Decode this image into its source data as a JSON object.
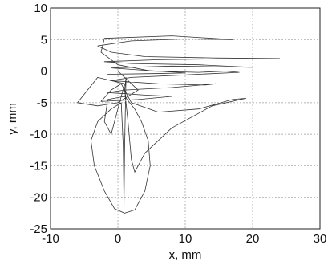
{
  "chart_data": {
    "type": "line",
    "xlabel": "x, mm",
    "ylabel": "y, mm",
    "xlim": [
      -10,
      30
    ],
    "ylim": [
      -25,
      10
    ],
    "xticks": [
      -10,
      0,
      10,
      20,
      30
    ],
    "yticks": [
      -25,
      -20,
      -15,
      -10,
      -5,
      0,
      5,
      10
    ],
    "grid": true,
    "series": [
      {
        "values_note": "approximate 2D trajectory (x, y) in mm",
        "points": [
          [
            -1.5,
            -0.5
          ],
          [
            5.0,
            -0.4
          ],
          [
            10.0,
            -0.3
          ],
          [
            3.0,
            0.2
          ],
          [
            -1.0,
            0.5
          ],
          [
            8.0,
            0.8
          ],
          [
            15.0,
            0.7
          ],
          [
            20.0,
            0.6
          ],
          [
            12.0,
            1.0
          ],
          [
            2.0,
            1.2
          ],
          [
            -2.0,
            1.5
          ],
          [
            6.0,
            1.8
          ],
          [
            18.0,
            2.0
          ],
          [
            24.0,
            2.0
          ],
          [
            14.0,
            2.1
          ],
          [
            4.0,
            2.3
          ],
          [
            -1.0,
            3.0
          ],
          [
            -3.0,
            4.0
          ],
          [
            2.0,
            4.8
          ],
          [
            10.0,
            5.1
          ],
          [
            17.0,
            5.0
          ],
          [
            8.0,
            5.6
          ],
          [
            -2.0,
            5.2
          ],
          [
            -2.5,
            3.0
          ],
          [
            0.0,
            1.0
          ],
          [
            5.0,
            0.0
          ],
          [
            12.0,
            -0.2
          ],
          [
            16.0,
            0.0
          ],
          [
            18.0,
            -0.2
          ],
          [
            10.0,
            -0.6
          ],
          [
            2.0,
            -1.0
          ],
          [
            -1.0,
            -1.5
          ],
          [
            6.0,
            -2.0
          ],
          [
            13.0,
            -2.2
          ],
          [
            14.5,
            -2.0
          ],
          [
            8.0,
            -2.6
          ],
          [
            1.0,
            -3.0
          ],
          [
            -1.5,
            -3.4
          ],
          [
            4.0,
            -3.8
          ],
          [
            8.0,
            -4.0
          ],
          [
            3.0,
            -4.5
          ],
          [
            -2.5,
            -4.8
          ],
          [
            -1.0,
            -3.0
          ],
          [
            0.5,
            -2.0
          ],
          [
            2.0,
            -5.0
          ],
          [
            6.0,
            -6.5
          ],
          [
            12.0,
            -6.0
          ],
          [
            17.0,
            -4.5
          ],
          [
            19.0,
            -4.3
          ],
          [
            14.0,
            -5.5
          ],
          [
            8.0,
            -9.0
          ],
          [
            4.0,
            -13.0
          ],
          [
            2.5,
            -16.0
          ],
          [
            2.0,
            -14.0
          ],
          [
            1.5,
            -8.0
          ],
          [
            1.0,
            -3.0
          ],
          [
            1.2,
            -1.0
          ],
          [
            1.0,
            -12.0
          ],
          [
            0.9,
            -21.5
          ],
          [
            0.8,
            -12.0
          ],
          [
            0.5,
            -5.0
          ],
          [
            -1.0,
            -6.0
          ],
          [
            -3.0,
            -8.0
          ],
          [
            -4.0,
            -11.0
          ],
          [
            -3.5,
            -15.0
          ],
          [
            -2.0,
            -19.0
          ],
          [
            -0.5,
            -21.8
          ],
          [
            1.0,
            -22.5
          ],
          [
            2.5,
            -22.0
          ],
          [
            4.0,
            -19.0
          ],
          [
            4.8,
            -15.0
          ],
          [
            4.5,
            -11.0
          ],
          [
            3.5,
            -8.0
          ],
          [
            2.5,
            -6.0
          ],
          [
            1.0,
            -4.0
          ],
          [
            -1.5,
            -4.5
          ],
          [
            -2.0,
            -8.0
          ],
          [
            -1.0,
            -10.0
          ],
          [
            0.0,
            -6.0
          ],
          [
            1.0,
            -2.0
          ],
          [
            -3.0,
            -1.0
          ],
          [
            -6.0,
            -5.0
          ],
          [
            -3.0,
            -5.5
          ],
          [
            0.0,
            -5.0
          ],
          [
            3.0,
            -3.0
          ],
          [
            0.0,
            0.0
          ]
        ]
      }
    ]
  }
}
